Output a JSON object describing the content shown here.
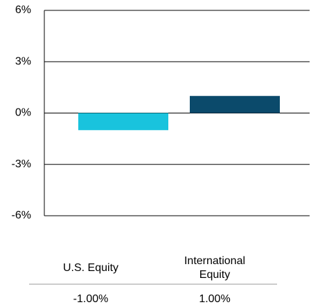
{
  "chart_data": {
    "type": "bar",
    "categories": [
      "U.S. Equity",
      "International Equity"
    ],
    "values": [
      -1.0,
      1.0
    ],
    "value_labels": [
      "-1.00%",
      "1.00%"
    ],
    "colors": [
      "#19c3dd",
      "#0b4a6b"
    ],
    "ylim": [
      -6,
      6
    ],
    "yticks": [
      {
        "value": -6,
        "label": "-6%"
      },
      {
        "value": -3,
        "label": "-3%"
      },
      {
        "value": 0,
        "label": "0%"
      },
      {
        "value": 3,
        "label": "3%"
      },
      {
        "value": 6,
        "label": "6%"
      }
    ],
    "grid": true
  }
}
